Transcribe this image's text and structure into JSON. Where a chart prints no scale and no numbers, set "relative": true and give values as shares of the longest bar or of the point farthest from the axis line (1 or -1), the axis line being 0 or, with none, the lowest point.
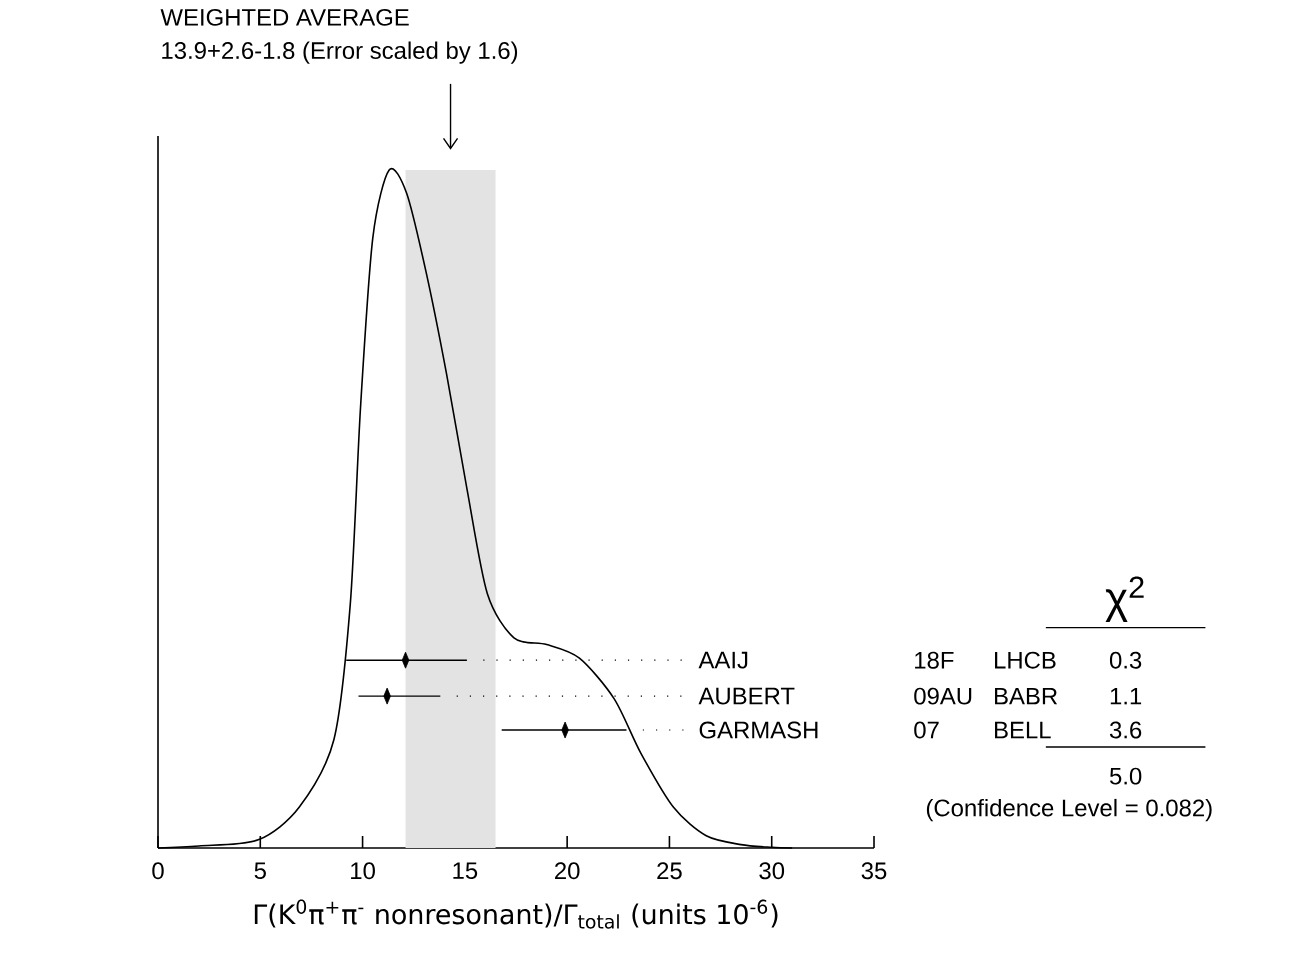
{
  "chart_data": {
    "type": "line",
    "title": "WEIGHTED AVERAGE",
    "xlabel": "Γ(K$^{0}$π$^{+}$π$^{-}$ nonresonant)/Γ$_{total}$ (units 10$^{-6}$)",
    "relative": true,
    "xlim": [
      0,
      35
    ],
    "xticks": [
      0,
      5,
      10,
      15,
      20,
      25,
      30,
      35
    ],
    "bands": [
      {
        "axis": "x",
        "from": 12.1,
        "to": 16.5,
        "color": "#e3e3e3"
      }
    ],
    "series": [
      {
        "color": "#000000",
        "x": [
          0,
          2,
          4.9,
          6.9,
          8.6,
          9.4,
          9.9,
          10.5,
          11.3,
          12.15,
          13.1,
          14.1,
          15.1,
          16.1,
          17.4,
          19.0,
          20.6,
          22.3,
          23.6,
          25.2,
          26.8,
          28.5,
          30,
          31
        ],
        "values": [
          0,
          0.003,
          0.012,
          0.06,
          0.16,
          0.36,
          0.65,
          0.9,
          1.0,
          0.966,
          0.85,
          0.7,
          0.53,
          0.375,
          0.31,
          0.3,
          0.28,
          0.22,
          0.14,
          0.06,
          0.018,
          0.005,
          0.001,
          0
        ]
      },
      {
        "type": "scatter",
        "name": "AAIJ",
        "color": "#000000",
        "marker": "diamond",
        "x": [
          12.1
        ],
        "values": [
          0.277
        ],
        "xerrors": [
          [
            9.2,
            15.1
          ]
        ]
      },
      {
        "type": "scatter",
        "name": "AUBERT",
        "color": "#000000",
        "marker": "diamond",
        "x": [
          11.2
        ],
        "values": [
          0.224
        ],
        "xerrors": [
          [
            9.8,
            13.8
          ]
        ]
      },
      {
        "type": "scatter",
        "name": "GARMASH",
        "color": "#000000",
        "marker": "diamond",
        "x": [
          19.9
        ],
        "values": [
          0.174
        ],
        "xerrors": [
          [
            16.8,
            22.9
          ]
        ]
      }
    ],
    "annotations": [
      "13.9+2.6-1.8 (Error scaled by 1.6)",
      "χ$^{2}$",
      "18F",
      "LHCB",
      "0.3",
      "09AU",
      "BABR",
      "1.1",
      "07",
      "BELL",
      "3.6",
      "5.0",
      "(Confidence Level = 0.082)"
    ]
  }
}
